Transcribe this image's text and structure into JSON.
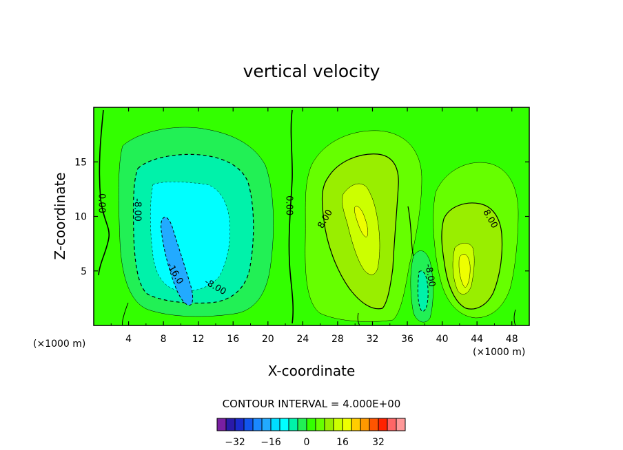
{
  "chart_data": {
    "type": "heatmap",
    "title": "vertical velocity",
    "xlabel": "X-coordinate",
    "ylabel": "Z-coordinate",
    "x_unit": "(×1000 m)",
    "z_unit": "(×1000 m)",
    "xlim": [
      0,
      50
    ],
    "ylim": [
      0,
      20
    ],
    "xticks": [
      4,
      8,
      12,
      16,
      20,
      24,
      28,
      32,
      36,
      40,
      44,
      48
    ],
    "yticks": [
      5,
      10,
      15
    ],
    "contour_interval_label": "CONTOUR INTERVAL = 4.000E+00",
    "contour_interval": 4,
    "colorbar": {
      "ticks": [
        -32,
        -16,
        0,
        16,
        32
      ],
      "tick_labels": [
        "−32",
        "−16",
        "0",
        "16",
        "32"
      ],
      "levels": [
        -36,
        -32,
        -28,
        -24,
        -20,
        -16,
        -12,
        -8,
        -4,
        0,
        4,
        8,
        12,
        16,
        20,
        24,
        28,
        32,
        36
      ],
      "colors": [
        "#7a1fa2",
        "#2a1aa8",
        "#1a2acc",
        "#1155ee",
        "#1a88ff",
        "#22aaff",
        "#00ddff",
        "#00ffff",
        "#00f2aa",
        "#22f055",
        "#33ff00",
        "#66ff00",
        "#99ee00",
        "#ccff00",
        "#eeff00",
        "#ffcc00",
        "#ff9900",
        "#ff5500",
        "#ff2200",
        "#ff6666",
        "#ff9999"
      ]
    },
    "contour_labels": [
      {
        "text": "0.00",
        "x": 1.0,
        "z": 11.2
      },
      {
        "text": "-8.00",
        "x": 5.1,
        "z": 10.6
      },
      {
        "text": "-16.0",
        "x": 9.4,
        "z": 4.8
      },
      {
        "text": "-8.00",
        "x": 14.0,
        "z": 3.6
      },
      {
        "text": "0.00",
        "x": 22.5,
        "z": 11.0
      },
      {
        "text": "8.00",
        "x": 26.5,
        "z": 9.8
      },
      {
        "text": "-8.00",
        "x": 38.7,
        "z": 4.6
      },
      {
        "text": "8.00",
        "x": 45.6,
        "z": 9.8
      }
    ],
    "features": [
      {
        "kind": "downdraft",
        "x_range": [
          3,
          19
        ],
        "z_range": [
          1,
          18
        ],
        "min_value": -20
      },
      {
        "kind": "updraft",
        "x_range": [
          24,
          36
        ],
        "z_range": [
          1,
          16
        ],
        "max_value": 16
      },
      {
        "kind": "downdraft",
        "x_range": [
          36,
          39.5
        ],
        "z_range": [
          1,
          7
        ],
        "min_value": -8
      },
      {
        "kind": "updraft",
        "x_range": [
          39,
          49
        ],
        "z_range": [
          2,
          15
        ],
        "max_value": 16
      }
    ]
  }
}
